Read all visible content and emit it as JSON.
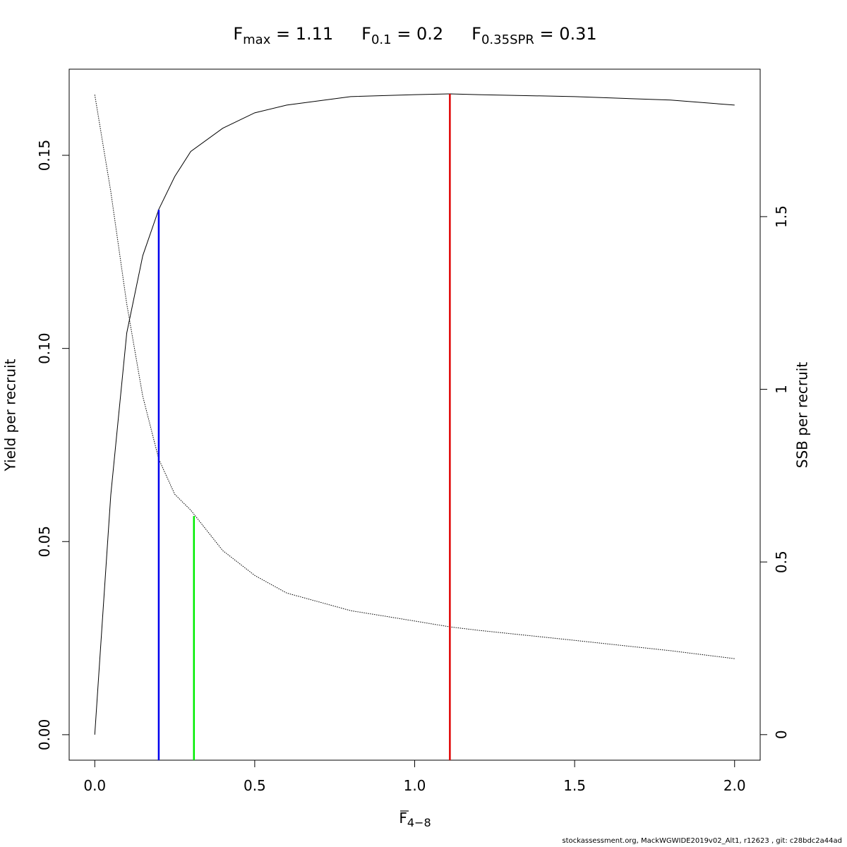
{
  "chart_data": {
    "type": "line",
    "title": [
      {
        "base": "F",
        "sub": "max",
        "rest": " = 1.11"
      },
      {
        "base": "F",
        "sub": "0.1",
        "rest": " = 0.2"
      },
      {
        "base": "F",
        "sub": "0.35SPR",
        "rest": " = 0.31"
      }
    ],
    "xlabel": {
      "base": "F",
      "sub": "4−8"
    },
    "ylabel": "Yield per recruit",
    "y2label": "SSB per recruit",
    "footer": "stockassessment.org, MackWGWIDE2019v02_Alt1, r12623 , git: c28bdc2a44ad",
    "x": [
      0,
      0.05,
      0.1,
      0.15,
      0.2,
      0.25,
      0.3,
      0.4,
      0.5,
      0.6,
      0.8,
      1.0,
      1.11,
      1.2,
      1.5,
      1.8,
      2.0
    ],
    "series": [
      {
        "color": "#000000",
        "axis": "y",
        "dash": "solid",
        "values": [
          0,
          0.062,
          0.104,
          0.124,
          0.136,
          0.1445,
          0.151,
          0.157,
          0.161,
          0.163,
          0.1652,
          0.1657,
          0.1659,
          0.1657,
          0.1652,
          0.1643,
          0.163
        ]
      },
      {
        "color": "#000000",
        "axis": "y2",
        "dash": "dotted",
        "values": [
          1.853,
          1.573,
          1.247,
          0.98,
          0.798,
          0.696,
          0.65,
          0.533,
          0.461,
          0.41,
          0.359,
          0.329,
          0.312,
          0.302,
          0.273,
          0.243,
          0.22
        ]
      }
    ],
    "vlines": [
      {
        "x": 1.11,
        "y": 0.1659,
        "axis": "y",
        "color": "#e00000"
      },
      {
        "x": 0.2,
        "y": 0.1359,
        "axis": "y",
        "color": "#0000ee"
      },
      {
        "x": 0.31,
        "y": 0.633,
        "axis": "y2",
        "color": "#00ee00"
      }
    ],
    "xlim": [
      -0.08,
      2.08
    ],
    "ylim": [
      -0.0066,
      0.1723
    ],
    "y2lim": [
      -0.074,
      1.927
    ],
    "xticks": [
      {
        "value": 0,
        "label": "0.0"
      },
      0.5,
      {
        "value": 1,
        "label": "1.0"
      },
      1.5,
      {
        "value": 2,
        "label": "2.0"
      }
    ],
    "yticks": [
      {
        "value": 0,
        "label": "0.00"
      },
      {
        "value": 0.05,
        "label": "0.05"
      },
      {
        "value": 0.1,
        "label": "0.10"
      },
      {
        "value": 0.15,
        "label": "0.15"
      }
    ],
    "y2ticks": [
      0,
      0.5,
      1,
      1.5
    ]
  }
}
